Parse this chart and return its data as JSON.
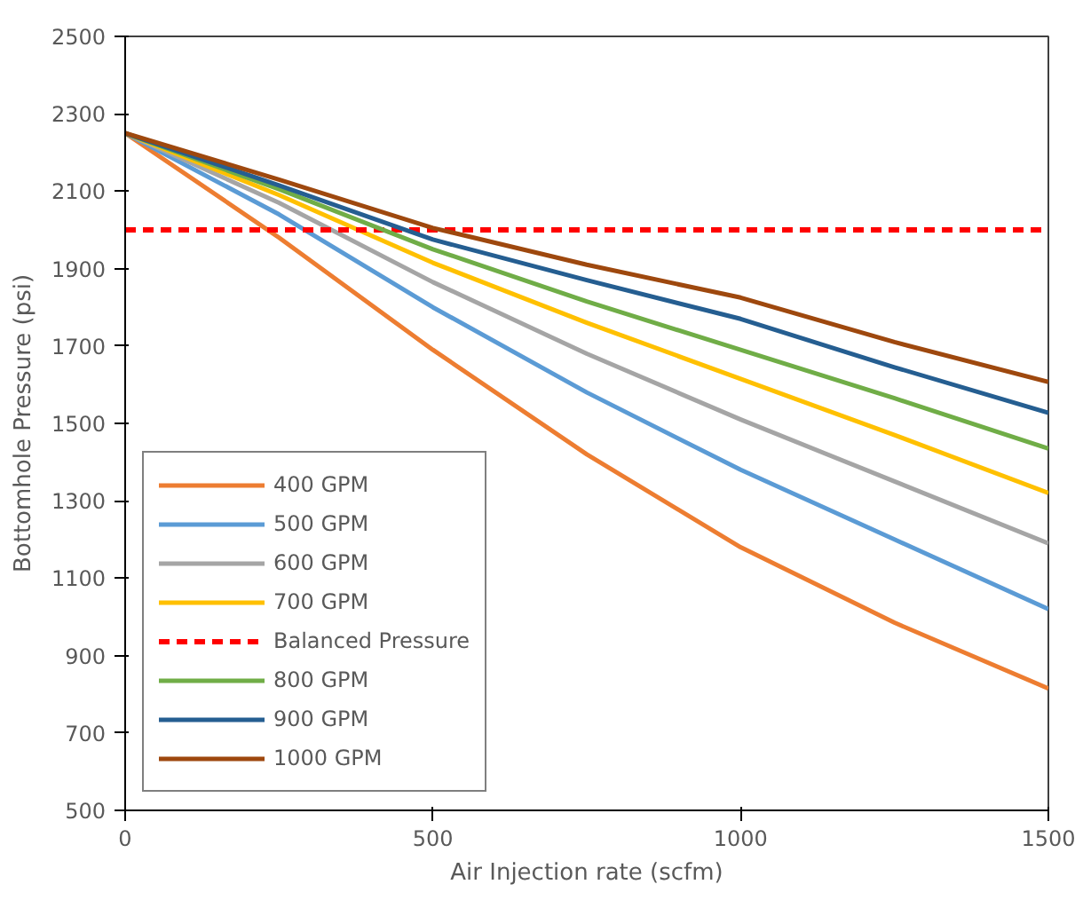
{
  "chart_data": {
    "type": "line",
    "xlabel": "Air Injection rate (scfm)",
    "ylabel": "Bottomhole Pressure (psi)",
    "x": [
      0,
      250,
      500,
      750,
      1000,
      1250,
      1500
    ],
    "xlim": [
      0,
      1500
    ],
    "xticks": [
      0,
      500,
      1000,
      1500
    ],
    "ylim": [
      500,
      2500
    ],
    "yticks": [
      500,
      700,
      900,
      1100,
      1300,
      1500,
      1700,
      1900,
      2100,
      2300,
      2500
    ],
    "grid": false,
    "legend": "bottom left",
    "marker": "none",
    "series": [
      {
        "name": "400 GPM",
        "color": "#ed7d31",
        "values": [
          2250,
          1980,
          1690,
          1420,
          1180,
          985,
          815
        ]
      },
      {
        "name": "500 GPM",
        "color": "#5b9bd5",
        "values": [
          2250,
          2040,
          1800,
          1580,
          1380,
          1200,
          1020
        ]
      },
      {
        "name": "600 GPM",
        "color": "#a5a5a5",
        "values": [
          2250,
          2070,
          1865,
          1680,
          1510,
          1350,
          1190
        ]
      },
      {
        "name": "700 GPM",
        "color": "#ffc000",
        "values": [
          2250,
          2090,
          1915,
          1760,
          1615,
          1470,
          1320
        ]
      },
      {
        "name": "Balanced Pressure",
        "color": "#ff0000",
        "x": [
          0,
          1500
        ],
        "values": [
          2000,
          2000
        ],
        "line_style": "dashed"
      },
      {
        "name": "800 GPM",
        "color": "#70ad47",
        "values": [
          2250,
          2105,
          1950,
          1815,
          1690,
          1565,
          1435
        ]
      },
      {
        "name": "900 GPM",
        "color": "#255e91",
        "values": [
          2250,
          2115,
          1975,
          1870,
          1770,
          1645,
          1527
        ]
      },
      {
        "name": "1000 GPM",
        "color": "#9e480e",
        "values": [
          2250,
          2130,
          2005,
          1910,
          1825,
          1710,
          1607
        ]
      }
    ]
  }
}
